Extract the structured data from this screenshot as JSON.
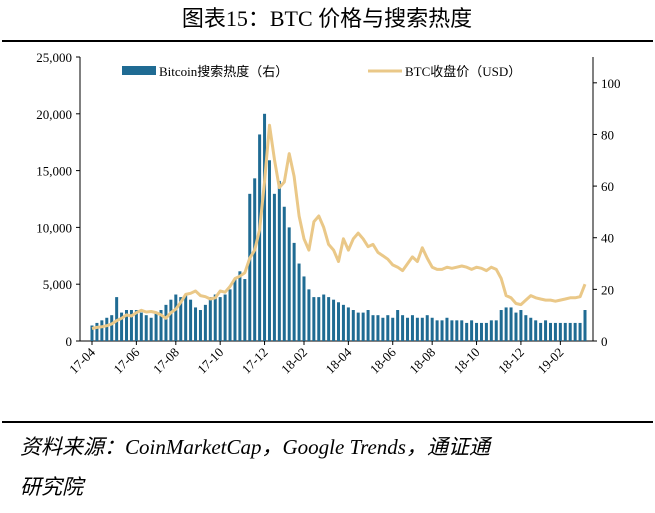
{
  "chart_data": {
    "type": "combo",
    "title": "图表15：BTC 价格与搜索热度",
    "source": "资料来源：CoinMarketCap，Google Trends，通证通",
    "source_cont": "研究院",
    "categories": [
      "17-04",
      null,
      null,
      null,
      null,
      null,
      null,
      null,
      null,
      "17-06",
      null,
      null,
      null,
      null,
      null,
      null,
      null,
      "17-08",
      null,
      null,
      null,
      null,
      null,
      null,
      null,
      null,
      "17-10",
      null,
      null,
      null,
      null,
      null,
      null,
      null,
      null,
      "17-12",
      null,
      null,
      null,
      null,
      null,
      null,
      null,
      "18-02",
      null,
      null,
      null,
      null,
      null,
      null,
      null,
      null,
      "18-04",
      null,
      null,
      null,
      null,
      null,
      null,
      null,
      null,
      "18-06",
      null,
      null,
      null,
      null,
      null,
      null,
      null,
      "18-08",
      null,
      null,
      null,
      null,
      null,
      null,
      null,
      null,
      "18-10",
      null,
      null,
      null,
      null,
      null,
      null,
      null,
      null,
      "18-12",
      null,
      null,
      null,
      null,
      null,
      null,
      null,
      "19-02",
      null,
      null,
      null,
      null,
      null
    ],
    "series": [
      {
        "name": "Bitcoin搜索热度（右）",
        "kind": "bar",
        "axis": "y2",
        "color": "#1f6b93",
        "values": [
          6,
          7,
          8,
          9,
          10,
          17,
          11,
          12,
          12,
          12,
          11,
          10,
          9,
          11,
          12,
          14,
          16,
          18,
          17,
          18,
          16,
          13,
          12,
          14,
          17,
          18,
          17,
          18,
          20,
          24,
          27,
          24,
          57,
          63,
          80,
          88,
          70,
          57,
          62,
          52,
          44,
          38,
          30,
          25,
          20,
          17,
          17,
          18,
          17,
          16,
          15,
          14,
          13,
          12,
          11,
          11,
          12,
          10,
          10,
          9,
          10,
          9,
          12,
          10,
          9,
          10,
          9,
          9,
          10,
          9,
          8,
          8,
          9,
          8,
          8,
          8,
          7,
          8,
          7,
          7,
          7,
          8,
          8,
          12,
          13,
          13,
          11,
          12,
          10,
          9,
          8,
          7,
          8,
          7,
          7,
          7,
          7,
          7,
          7,
          7,
          12
        ]
      },
      {
        "name": "BTC收盘价（USD）",
        "kind": "line",
        "color": "#eac888",
        "values": [
          1100,
          1200,
          1250,
          1350,
          1500,
          1800,
          2000,
          2300,
          2200,
          2500,
          2700,
          2550,
          2600,
          2500,
          2300,
          2000,
          2500,
          2800,
          3400,
          4100,
          4200,
          4400,
          4000,
          3900,
          3700,
          3800,
          4400,
          4300,
          4800,
          5500,
          5700,
          6000,
          7300,
          8000,
          9800,
          14000,
          19000,
          16000,
          13500,
          14000,
          16500,
          14500,
          11000,
          9000,
          8000,
          10500,
          11000,
          10000,
          8500,
          8000,
          7000,
          9000,
          8000,
          9000,
          9500,
          9000,
          8300,
          8500,
          7800,
          7500,
          7200,
          6700,
          6500,
          6200,
          6800,
          7400,
          7000,
          8200,
          7300,
          6500,
          6300,
          6300,
          6500,
          6400,
          6500,
          6600,
          6500,
          6300,
          6500,
          6400,
          6200,
          6500,
          6300,
          5500,
          4000,
          3800,
          3300,
          3200,
          3600,
          4000,
          3800,
          3700,
          3600,
          3600,
          3500,
          3600,
          3700,
          3800,
          3800,
          3900,
          5000
        ]
      }
    ],
    "ylim": [
      0,
      25000
    ],
    "yticks": [
      0,
      {
        "value": 5000,
        "label": "5,000"
      },
      {
        "value": 10000,
        "label": "10,000"
      },
      {
        "value": 15000,
        "label": "15,000"
      },
      {
        "value": 20000,
        "label": "20,000"
      },
      {
        "value": 25000,
        "label": "25,000"
      }
    ],
    "y2lim": [
      0,
      110
    ],
    "y2ticks": [
      0,
      20,
      40,
      60,
      80,
      100
    ]
  }
}
